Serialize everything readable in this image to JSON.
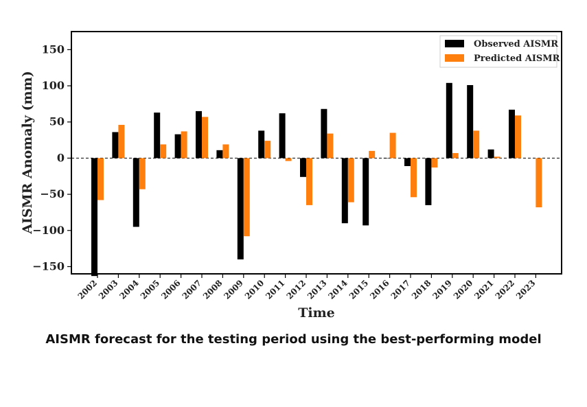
{
  "caption": "AISMR forecast for the testing period using the best-performing model",
  "chart_data": {
    "type": "bar",
    "xlabel": "Time",
    "ylabel": "AISMR Anomaly (mm)",
    "ylim": [
      -160,
      175
    ],
    "yticks": [
      -150,
      -100,
      -50,
      0,
      50,
      100,
      150
    ],
    "ytick_labels": [
      "−150",
      "−100",
      "−50",
      "0",
      "50",
      "100",
      "150"
    ],
    "zero_line": true,
    "legend_position": "top-right",
    "categories": [
      "2002",
      "2003",
      "2004",
      "2005",
      "2006",
      "2007",
      "2008",
      "2009",
      "2010",
      "2011",
      "2012",
      "2013",
      "2014",
      "2015",
      "2016",
      "2017",
      "2018",
      "2019",
      "2020",
      "2021",
      "2022",
      "2023"
    ],
    "series": [
      {
        "name": "Observed AISMR",
        "color": "#000000",
        "values": [
          -163,
          36,
          -95,
          63,
          33,
          65,
          11,
          -140,
          38,
          62,
          -26,
          68,
          -90,
          -93,
          0,
          -11,
          -65,
          104,
          101,
          12,
          67,
          null
        ]
      },
      {
        "name": "Predicted AISMR",
        "color": "#ff7f0e",
        "values": [
          -58,
          46,
          -43,
          19,
          37,
          57,
          19,
          -108,
          24,
          -4,
          -65,
          34,
          -61,
          10,
          35,
          -54,
          -13,
          7,
          38,
          2,
          59,
          -68
        ]
      }
    ]
  }
}
